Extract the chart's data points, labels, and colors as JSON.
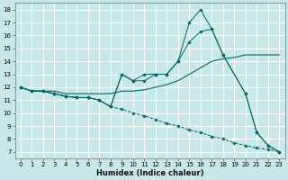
{
  "xlabel": "Humidex (Indice chaleur)",
  "bg_color": "#c8e8e8",
  "grid_color": "#ffffff",
  "line_color": "#006666",
  "xlim_min": -0.5,
  "xlim_max": 23.5,
  "ylim_min": 6.5,
  "ylim_max": 18.5,
  "xticks": [
    0,
    1,
    2,
    3,
    4,
    5,
    6,
    7,
    8,
    9,
    10,
    11,
    12,
    13,
    14,
    15,
    16,
    17,
    18,
    19,
    20,
    21,
    22,
    23
  ],
  "yticks": [
    7,
    8,
    9,
    10,
    11,
    12,
    13,
    14,
    15,
    16,
    17,
    18
  ],
  "series": [
    {
      "x": [
        0,
        1,
        2,
        3,
        4,
        5,
        6,
        7,
        8,
        9,
        10,
        11,
        12,
        13,
        14,
        15,
        16,
        17,
        18,
        19,
        20,
        21,
        22,
        23
      ],
      "y": [
        12,
        11.7,
        11.7,
        11.7,
        11.5,
        11.5,
        11.5,
        11.5,
        11.5,
        11.7,
        11.7,
        11.8,
        12.0,
        12.2,
        12.5,
        13.0,
        13.5,
        14.0,
        14.2,
        14.3,
        14.5,
        14.5,
        14.5,
        14.5
      ],
      "marker": false,
      "dashed": false
    },
    {
      "x": [
        0,
        1,
        2,
        3,
        4,
        5,
        6,
        7,
        8,
        9,
        10,
        11,
        12,
        13,
        14,
        15,
        16,
        17,
        18,
        20,
        21,
        22,
        23
      ],
      "y": [
        12,
        11.7,
        11.7,
        11.5,
        11.3,
        11.2,
        11.2,
        11.0,
        10.5,
        13.0,
        12.5,
        13.0,
        13.0,
        13.0,
        14.0,
        17.0,
        18.0,
        16.5,
        14.5,
        11.5,
        8.5,
        7.5,
        7.0
      ],
      "marker": true,
      "dashed": false
    },
    {
      "x": [
        0,
        1,
        2,
        3,
        4,
        5,
        6,
        7,
        8,
        9,
        10,
        11,
        12,
        13,
        14,
        15,
        16,
        17,
        18,
        20,
        21,
        22,
        23
      ],
      "y": [
        12,
        11.7,
        11.7,
        11.5,
        11.3,
        11.2,
        11.2,
        11.0,
        10.5,
        13.0,
        12.5,
        12.5,
        13.0,
        13.0,
        14.0,
        15.5,
        16.3,
        16.5,
        14.5,
        11.5,
        8.5,
        7.5,
        7.0
      ],
      "marker": true,
      "dashed": false
    },
    {
      "x": [
        0,
        1,
        2,
        3,
        4,
        5,
        6,
        7,
        8,
        9,
        10,
        11,
        12,
        13,
        14,
        15,
        16,
        17,
        18,
        19,
        20,
        21,
        22,
        23
      ],
      "y": [
        12,
        11.7,
        11.7,
        11.5,
        11.3,
        11.2,
        11.2,
        11.0,
        10.5,
        10.3,
        10.0,
        9.8,
        9.5,
        9.2,
        9.0,
        8.7,
        8.5,
        8.2,
        8.0,
        7.7,
        7.5,
        7.3,
        7.2,
        7.0
      ],
      "marker": true,
      "dashed": true
    }
  ]
}
